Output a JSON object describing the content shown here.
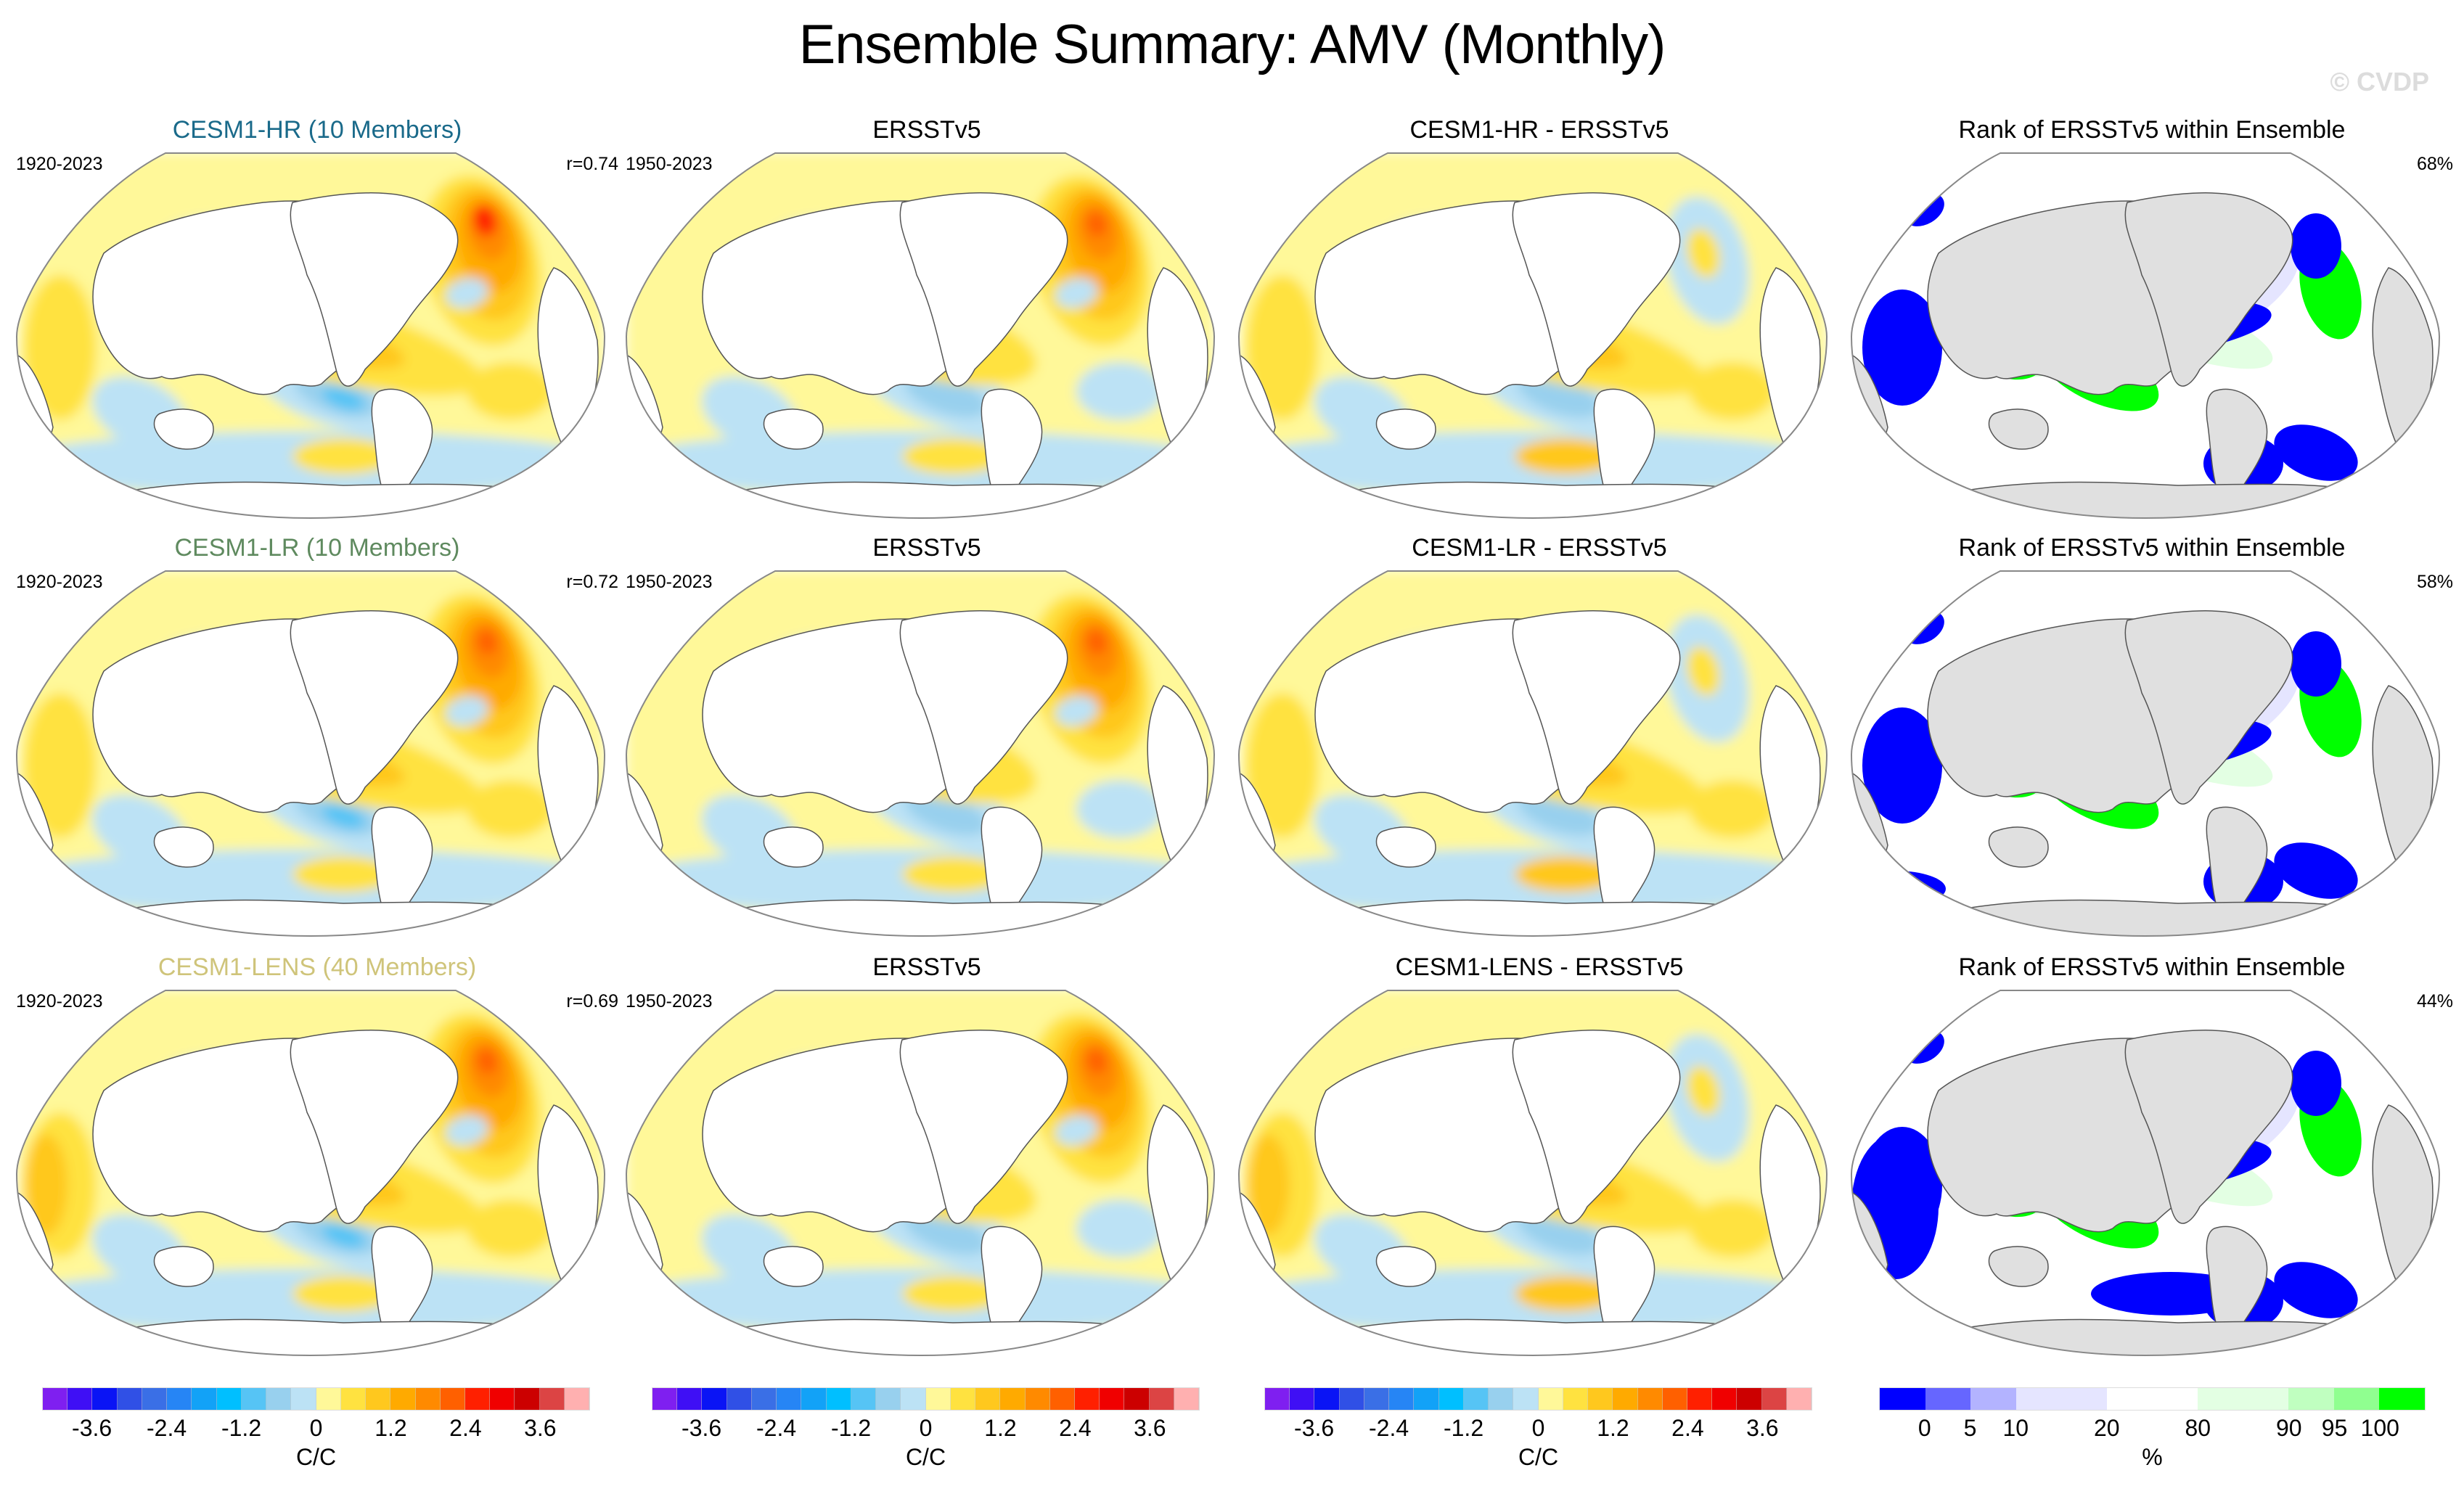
{
  "title": "Ensemble Summary: AMV (Monthly)",
  "watermark": "© CVDP",
  "chart_data": {
    "type": "heatmap",
    "title": "Ensemble Summary: AMV (Monthly)",
    "projection": "global ellipse (Pacific-centered)",
    "rows": [
      {
        "model": "CESM1-HR (10 Members)",
        "model_color": "#1a6a8a",
        "model_period": "1920-2023",
        "pattern_correlation": "r=0.74",
        "obs_title": "ERSSTv5",
        "obs_period": "1950-2023",
        "diff_title": "CESM1-HR - ERSSTv5",
        "rank_title": "Rank of ERSSTv5 within Ensemble",
        "rank_percent": "68%"
      },
      {
        "model": "CESM1-LR (10 Members)",
        "model_color": "#5f8a5f",
        "model_period": "1920-2023",
        "pattern_correlation": "r=0.72",
        "obs_title": "ERSSTv5",
        "obs_period": "1950-2023",
        "diff_title": "CESM1-LR - ERSSTv5",
        "rank_title": "Rank of ERSSTv5 within Ensemble",
        "rank_percent": "58%"
      },
      {
        "model": "CESM1-LENS (40 Members)",
        "model_color": "#cfc47a",
        "model_period": "1920-2023",
        "pattern_correlation": "r=0.69",
        "obs_title": "ERSSTv5",
        "obs_period": "1950-2023",
        "diff_title": "CESM1-LENS - ERSSTv5",
        "rank_title": "Rank of ERSSTv5 within Ensemble",
        "rank_percent": "44%"
      }
    ],
    "anomaly_colorbar": {
      "units": "C/C",
      "tick_labels": [
        "-3.6",
        "-2.4",
        "-1.2",
        "0",
        "1.2",
        "2.4",
        "3.6"
      ],
      "tick_values": [
        -3.6,
        -2.4,
        -1.2,
        0,
        1.2,
        2.4,
        3.6
      ],
      "colors": [
        "#7f1ff0",
        "#3f0ff5",
        "#0a14f5",
        "#3050e6",
        "#3a6fe6",
        "#2685f5",
        "#12a2f7",
        "#00bfff",
        "#56c4f5",
        "#98d0ee",
        "#bce2f5",
        "#fff899",
        "#ffe240",
        "#ffc81e",
        "#ffaa00",
        "#ff8a00",
        "#ff6000",
        "#ff2000",
        "#f00000",
        "#cc0000",
        "#dc4444",
        "#ffb0b0"
      ]
    },
    "rank_colorbar": {
      "units": "%",
      "tick_labels": [
        "0",
        "5",
        "10",
        "20",
        "80",
        "90",
        "95",
        "100"
      ],
      "colors": [
        "#0000ff",
        "#6666ff",
        "#b3b3ff",
        "#e5e5ff",
        "#e5e5ff",
        "#ffffff",
        "#ffffff",
        "#e3ffe3",
        "#e3ffe3",
        "#c0ffc0",
        "#90ff90",
        "#00ff00"
      ]
    }
  },
  "maps": {
    "ocean_land_color": "#ffffff",
    "rank_land_color": "#e0e0e0"
  }
}
